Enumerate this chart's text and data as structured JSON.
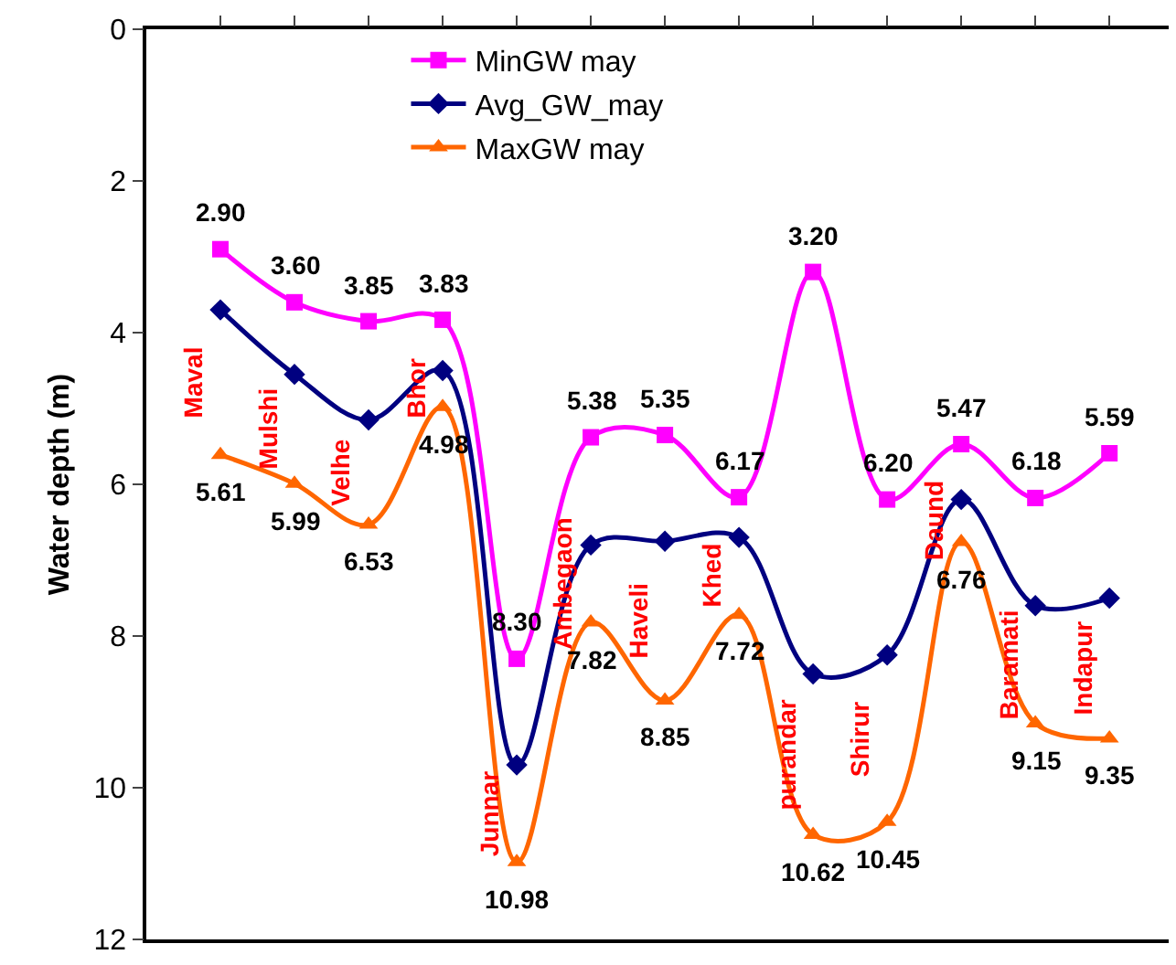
{
  "chart_data": {
    "type": "line",
    "ylabel": "Water depth (m)",
    "categories": [
      "Maval",
      "Mulshi",
      "Velhe",
      "Bhor",
      "Junnar",
      "Ambegaon",
      "Haveli",
      "Khed",
      "purandar",
      "Shirur",
      "Daund",
      "Baramati",
      "Indapur"
    ],
    "series": [
      {
        "name": "MinGW may",
        "color": "#ff00ff",
        "marker": "square",
        "values": [
          2.9,
          3.6,
          3.85,
          3.83,
          8.3,
          5.38,
          5.35,
          6.17,
          3.2,
          6.2,
          5.47,
          6.18,
          5.59
        ],
        "value_labels": [
          "2.90",
          "3.60",
          "3.85",
          "3.83",
          "8.30",
          "5.38",
          "5.35",
          "6.17",
          "3.20",
          "6.20",
          "5.47",
          "6.18",
          "5.59"
        ]
      },
      {
        "name": "Avg_GW_may",
        "color": "#000080",
        "marker": "diamond",
        "values": [
          3.7,
          4.55,
          5.15,
          4.5,
          9.7,
          6.8,
          6.75,
          6.7,
          8.5,
          8.25,
          6.2,
          7.6,
          7.5
        ]
      },
      {
        "name": "MaxGW may",
        "color": "#ff6600",
        "marker": "triangle",
        "values": [
          5.61,
          5.99,
          6.53,
          4.98,
          10.98,
          7.82,
          8.85,
          7.72,
          10.62,
          10.45,
          6.76,
          9.15,
          9.35
        ],
        "value_labels": [
          "5.61",
          "5.99",
          "6.53",
          "4.98",
          "10.98",
          "7.82",
          "8.85",
          "7.72",
          "10.62",
          "10.45",
          "6.76",
          "9.15",
          "9.35"
        ]
      }
    ],
    "ylim": [
      12,
      0
    ],
    "yticks": [
      0,
      2,
      4,
      6,
      8,
      10,
      12
    ],
    "grid": false,
    "legend": "top",
    "tick_labels": "y",
    "line_style": "solid"
  }
}
